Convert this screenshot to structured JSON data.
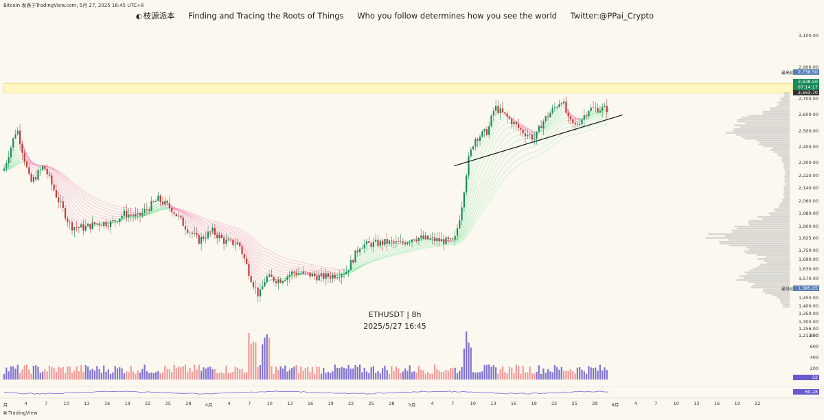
{
  "source_line": "Bitcoin-发表于TradingView.com,   5月 27, 2025 16:45 UTC+8",
  "header": {
    "logo_text": "枝源派本",
    "slogan": "Finding and Tracing the Roots of Things",
    "tagline": "Who you follow determines how you see the world",
    "twitter": "Twitter:@PPai_Crypto"
  },
  "watermark": {
    "symbol": "ETHUSDT | 8h",
    "datetime": "2025/5/27 16:45"
  },
  "footer_logo": "TradingView",
  "price_tags": {
    "high_label": "最高价",
    "high": "2,738.50",
    "current": "2,638.50",
    "countdown": "07:14:17",
    "ema": "2,563.70",
    "low_label": "最低价",
    "low": "1,385.05",
    "volume": "22",
    "indicator": "60.28"
  },
  "y_axis_ticks": [
    "3,100.00",
    "2,900.00",
    "2,800.00",
    "2,700.00",
    "2,600.00",
    "2,500.00",
    "2,400.00",
    "2,300.00",
    "2,220.00",
    "2,140.00",
    "2,060.00",
    "1,980.00",
    "1,900.00",
    "1,825.00",
    "1,750.00",
    "1,690.00",
    "1,630.00",
    "1,570.00",
    "1,510.00",
    "1,450.00",
    "1,400.00",
    "1,350.00",
    "1,300.00",
    "1,256.00",
    "1,213.50",
    "800",
    "600",
    "400",
    "200"
  ],
  "x_axis_ticks": [
    "月",
    "4",
    "7",
    "10",
    "13",
    "16",
    "19",
    "22",
    "25",
    "28",
    "4月",
    "4",
    "7",
    "10",
    "13",
    "16",
    "19",
    "22",
    "25",
    "28",
    "5月",
    "4",
    "7",
    "10",
    "13",
    "16",
    "19",
    "22",
    "25",
    "28",
    "6月",
    "4",
    "7",
    "10",
    "13",
    "16",
    "19",
    "22"
  ],
  "colors": {
    "up": "#1a8a5a",
    "down": "#c63a3a",
    "resistance_band": "#fff6c2",
    "ribbon_bear": "#f08cb8",
    "ribbon_bull": "#7ee8a0",
    "volume_up": "#6a5acd",
    "volume_down": "#f08a8a"
  },
  "chart_data": {
    "type": "candlestick",
    "symbol": "ETHUSDT",
    "interval": "8h",
    "y_range": [
      1200,
      3150
    ],
    "resistance_zone": [
      2738.5,
      2800
    ],
    "trendline": {
      "from": [
        "2025-05-07",
        2280
      ],
      "to": [
        "2025-06-01",
        2600
      ]
    },
    "key_levels": {
      "high": 2738.5,
      "low": 1385.05,
      "last": 2638.5
    },
    "price_path": [
      [
        "2025-03-01",
        2250
      ],
      [
        "2025-03-03",
        2520
      ],
      [
        "2025-03-05",
        2170
      ],
      [
        "2025-03-07",
        2280
      ],
      [
        "2025-03-09",
        2080
      ],
      [
        "2025-03-11",
        1900
      ],
      [
        "2025-03-13",
        1890
      ],
      [
        "2025-03-15",
        1920
      ],
      [
        "2025-03-17",
        1920
      ],
      [
        "2025-03-19",
        1980
      ],
      [
        "2025-03-21",
        1960
      ],
      [
        "2025-03-24",
        2070
      ],
      [
        "2025-03-26",
        2010
      ],
      [
        "2025-03-28",
        1900
      ],
      [
        "2025-03-30",
        1810
      ],
      [
        "2025-04-01",
        1870
      ],
      [
        "2025-04-03",
        1800
      ],
      [
        "2025-04-05",
        1790
      ],
      [
        "2025-04-07",
        1550
      ],
      [
        "2025-04-08",
        1460
      ],
      [
        "2025-04-09",
        1580
      ],
      [
        "2025-04-11",
        1560
      ],
      [
        "2025-04-13",
        1610
      ],
      [
        "2025-04-15",
        1600
      ],
      [
        "2025-04-17",
        1580
      ],
      [
        "2025-04-19",
        1590
      ],
      [
        "2025-04-21",
        1620
      ],
      [
        "2025-04-23",
        1780
      ],
      [
        "2025-04-25",
        1790
      ],
      [
        "2025-04-27",
        1800
      ],
      [
        "2025-04-29",
        1790
      ],
      [
        "2025-05-01",
        1830
      ],
      [
        "2025-05-03",
        1820
      ],
      [
        "2025-05-05",
        1810
      ],
      [
        "2025-05-07",
        1800
      ],
      [
        "2025-05-08",
        2000
      ],
      [
        "2025-05-09",
        2300
      ],
      [
        "2025-05-10",
        2450
      ],
      [
        "2025-05-12",
        2500
      ],
      [
        "2025-05-13",
        2650
      ],
      [
        "2025-05-15",
        2580
      ],
      [
        "2025-05-17",
        2500
      ],
      [
        "2025-05-19",
        2450
      ],
      [
        "2025-05-20",
        2550
      ],
      [
        "2025-05-22",
        2650
      ],
      [
        "2025-05-23",
        2700
      ],
      [
        "2025-05-24",
        2560
      ],
      [
        "2025-05-25",
        2530
      ],
      [
        "2025-05-26",
        2580
      ],
      [
        "2025-05-27",
        2638.5
      ]
    ],
    "volume_peak_dates": [
      "2025-04-07",
      "2025-04-09",
      "2025-05-09"
    ]
  }
}
